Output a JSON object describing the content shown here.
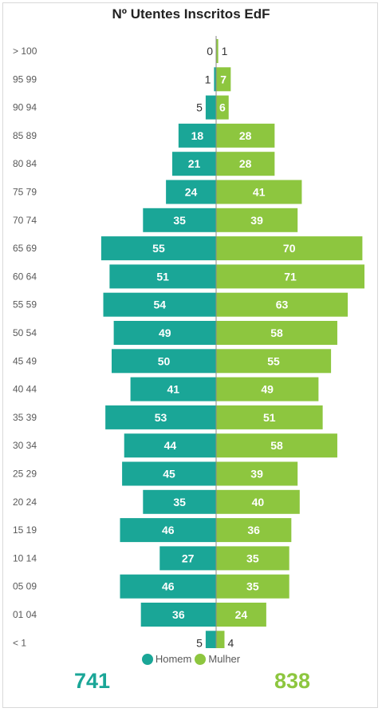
{
  "colors": {
    "male": "#1aa697",
    "female": "#8dc63f"
  },
  "legend": {
    "male_label": "Homem",
    "female_label": "Mulher"
  },
  "totals": {
    "male": "741",
    "female": "838"
  },
  "chart_data": {
    "type": "bar",
    "orientation": "horizontal-population-pyramid",
    "title": "Nº Utentes Inscritos EdF",
    "categories": [
      "> 100",
      "95 99",
      "90 94",
      "85 89",
      "80 84",
      "75 79",
      "70 74",
      "65 69",
      "60 64",
      "55 59",
      "50 54",
      "45 49",
      "40 44",
      "35 39",
      "30 34",
      "25 29",
      "20 24",
      "15 19",
      "10 14",
      "05 09",
      "01 04",
      "< 1"
    ],
    "series": [
      {
        "name": "Homem",
        "values": [
          0,
          1,
          5,
          18,
          21,
          24,
          35,
          55,
          51,
          54,
          49,
          50,
          41,
          53,
          44,
          45,
          35,
          46,
          27,
          46,
          36,
          5
        ]
      },
      {
        "name": "Mulher",
        "values": [
          1,
          7,
          6,
          28,
          28,
          41,
          39,
          70,
          71,
          63,
          58,
          55,
          49,
          51,
          58,
          39,
          40,
          36,
          35,
          35,
          24,
          4
        ]
      }
    ],
    "legend_position": "bottom-center",
    "grid": false
  }
}
